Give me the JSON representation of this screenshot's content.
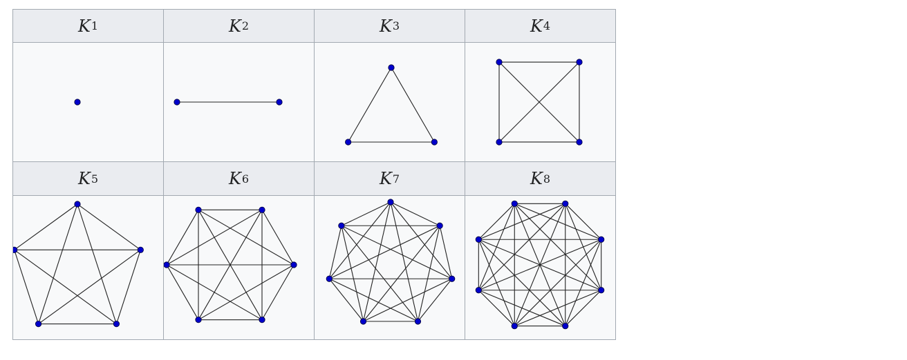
{
  "graphs": [
    {
      "name": "K",
      "sub": "1",
      "n": 1,
      "rot": 0
    },
    {
      "name": "K",
      "sub": "2",
      "n": 2,
      "rot": 0
    },
    {
      "name": "K",
      "sub": "3",
      "n": 3,
      "rot": 0
    },
    {
      "name": "K",
      "sub": "4",
      "n": 4,
      "rot": 45
    },
    {
      "name": "K",
      "sub": "5",
      "n": 5,
      "rot": 0
    },
    {
      "name": "K",
      "sub": "6",
      "n": 6,
      "rot": 30
    },
    {
      "name": "K",
      "sub": "7",
      "n": 7,
      "rot": 0
    },
    {
      "name": "K",
      "sub": "8",
      "n": 8,
      "rot": 22.5
    }
  ],
  "colors": {
    "vertex": "#0000cc",
    "vertex_stroke": "#000033",
    "edge": "#222222"
  }
}
